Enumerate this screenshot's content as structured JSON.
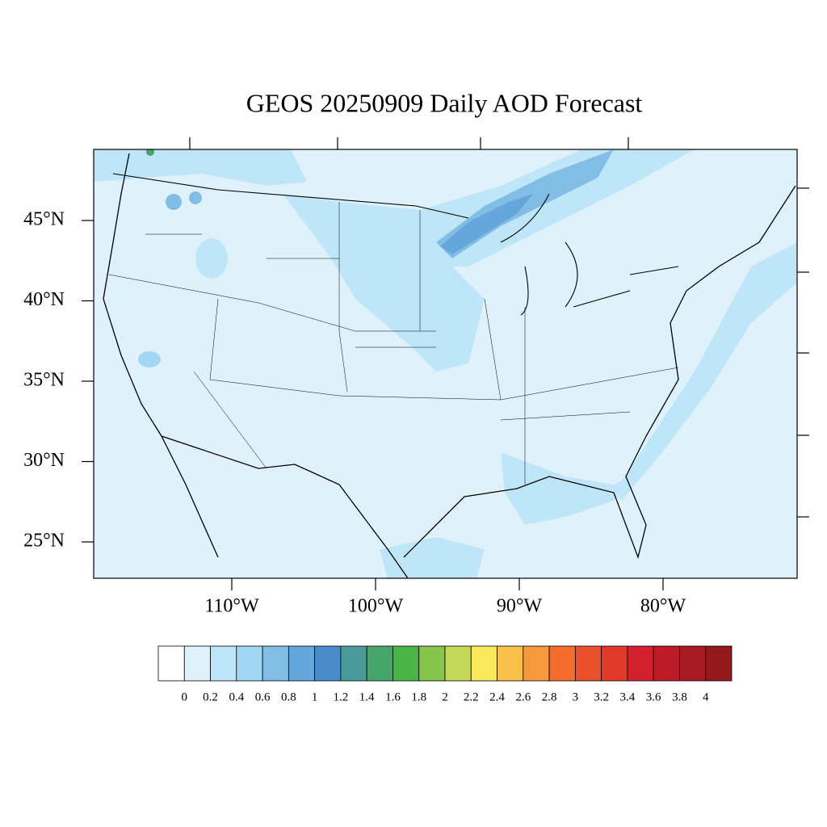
{
  "title": "GEOS 20250909 Daily AOD Forecast",
  "lat_ticks": [
    {
      "value": 45,
      "label": "45°N"
    },
    {
      "value": 40,
      "label": "40°N"
    },
    {
      "value": 35,
      "label": "35°N"
    },
    {
      "value": 30,
      "label": "30°N"
    },
    {
      "value": 25,
      "label": "25°N"
    }
  ],
  "lon_ticks": [
    {
      "value": -110,
      "label": "110°W"
    },
    {
      "value": -100,
      "label": "100°W"
    },
    {
      "value": -90,
      "label": "90°W"
    },
    {
      "value": -80,
      "label": "80°W"
    }
  ],
  "colorbar": {
    "colors": [
      "#ffffff",
      "#dff2fb",
      "#bfe6f8",
      "#a2d7f3",
      "#82bde6",
      "#65a6dc",
      "#4a8cc9",
      "#4b9a9a",
      "#45a56a",
      "#4bb446",
      "#86c44d",
      "#c3d858",
      "#f7e85c",
      "#f8c04b",
      "#f79a3e",
      "#f46d2e",
      "#ea502b",
      "#e03a2a",
      "#d3202d",
      "#bd1b27",
      "#a91b22",
      "#94181c"
    ],
    "ticks": [
      0,
      0.2,
      0.4,
      0.6,
      0.8,
      1,
      1.2,
      1.4,
      1.6,
      1.8,
      2,
      2.2,
      2.4,
      2.6,
      2.8,
      3,
      3.2,
      3.4,
      3.6,
      3.8,
      4
    ]
  }
}
